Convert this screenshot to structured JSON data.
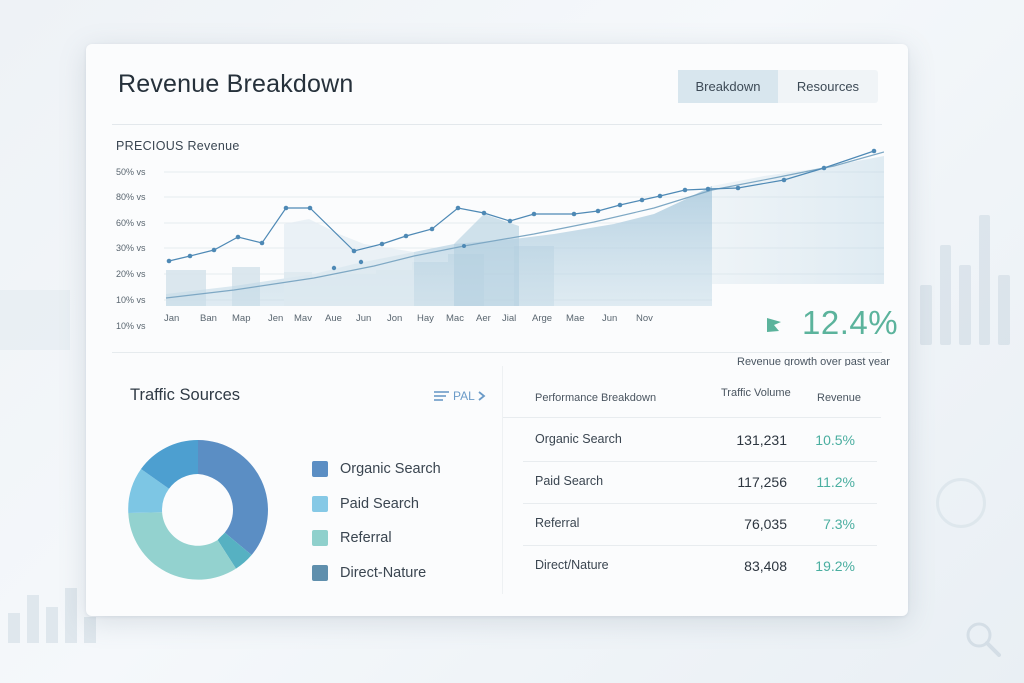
{
  "window": {
    "title": "Revenue Breakdown"
  },
  "tabs": [
    {
      "label": "Breakdown",
      "active": true
    },
    {
      "label": "Resources",
      "active": false
    }
  ],
  "revenue_chart": {
    "title": "PRECIOUS Revenue",
    "y_ticks": [
      "50% vs",
      "80% vs",
      "60% vs",
      "30% vs",
      "20% vs",
      "10% vs",
      "10% vs"
    ],
    "x_ticks": [
      "Jan",
      "Ban",
      "Map",
      "Jen",
      "Mav",
      "Aue",
      "Jun",
      "Jon",
      "Hay",
      "Mac",
      "Aer",
      "Jial",
      "Arge",
      "Mae",
      "Jun",
      "Nov"
    ]
  },
  "growth": {
    "value": "12.4%",
    "label": "Revenue growth over past year",
    "accent": "#5bb39c"
  },
  "traffic": {
    "title": "Traffic Sources",
    "link_label": "PAL",
    "legend": [
      {
        "label": "Organic Search",
        "color": "#5b8ec4"
      },
      {
        "label": "Paid Search",
        "color": "#86c9e6"
      },
      {
        "label": "Referral",
        "color": "#8fd0cc"
      },
      {
        "label": "Direct-Nature",
        "color": "#5f8fad"
      }
    ]
  },
  "performance": {
    "headers": {
      "name": "Performance Breakdown",
      "volume": "Traffic Volume",
      "revenue": "Revenue"
    },
    "rows": [
      {
        "name": "Organic Search",
        "volume": "131,231",
        "revenue": "10.5%"
      },
      {
        "name": "Paid Search",
        "volume": "117,256",
        "revenue": "11.2%"
      },
      {
        "name": "Referral",
        "volume": "76,035",
        "revenue": "7.3%"
      },
      {
        "name": "Direct/Nature",
        "volume": "83,408",
        "revenue": "19.2%"
      }
    ]
  }
}
